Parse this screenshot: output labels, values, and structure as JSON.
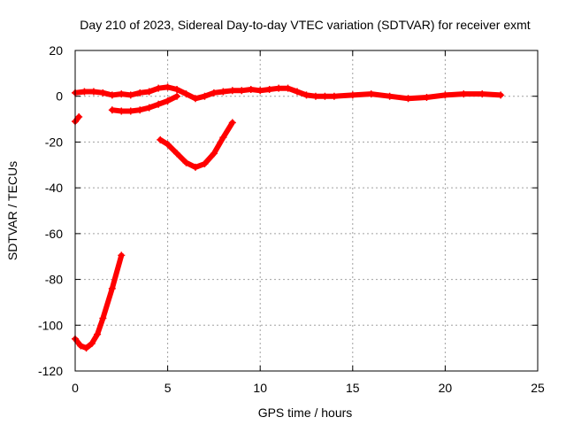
{
  "chart_data": {
    "type": "scatter",
    "title": "Day 210 of 2023, Sidereal Day-to-day VTEC variation (SDTVAR) for receiver exmt",
    "xlabel": "GPS time / hours",
    "ylabel": "SDTVAR / TECUs",
    "xlim": [
      0,
      25
    ],
    "ylim": [
      -120,
      20
    ],
    "grid": true,
    "xticks": [
      0,
      5,
      10,
      15,
      20,
      25
    ],
    "yticks": [
      20,
      0,
      -20,
      -40,
      -60,
      -80,
      -100,
      -120
    ],
    "series": [
      {
        "name": "main-trace",
        "color": "#ff0000",
        "x": [
          0,
          0.5,
          1,
          1.5,
          2,
          2.5,
          3,
          3.5,
          4,
          4.5,
          5,
          5.5,
          6,
          6.5,
          7,
          7.5,
          8,
          8.5,
          9,
          9.5,
          10,
          10.5,
          11,
          11.5,
          12,
          12.5,
          13,
          13.5,
          14,
          15,
          16,
          17,
          18,
          19,
          20,
          21,
          22,
          23
        ],
        "y": [
          1.5,
          2,
          2,
          1.5,
          0.5,
          1,
          0.5,
          1.5,
          2,
          3.5,
          4,
          3,
          1,
          -1,
          0,
          1.5,
          2,
          2.5,
          2.5,
          3,
          2.5,
          3,
          3.5,
          3.5,
          2,
          0.5,
          0,
          0,
          0,
          0.5,
          1,
          0,
          -1,
          -0.5,
          0.5,
          1,
          1,
          0.5
        ]
      },
      {
        "name": "lower-branch",
        "color": "#ff0000",
        "x": [
          2,
          2.5,
          3,
          3.5,
          4,
          4.5,
          5,
          5.5
        ],
        "y": [
          -6,
          -6.5,
          -6.5,
          -6,
          -5,
          -3.5,
          -2,
          0
        ]
      },
      {
        "name": "start-fragment",
        "color": "#ff0000",
        "x": [
          0,
          0.2
        ],
        "y": [
          -11,
          -9
        ]
      },
      {
        "name": "midday-dip",
        "color": "#ff0000",
        "x": [
          4.6,
          5,
          5.5,
          6,
          6.5,
          7,
          7.5,
          8,
          8.5
        ],
        "y": [
          -19,
          -21,
          -25,
          -29,
          -31,
          -29.5,
          -25,
          -18,
          -11.5
        ]
      },
      {
        "name": "early-dip",
        "color": "#ff0000",
        "x": [
          0,
          0.3,
          0.6,
          0.9,
          1.2,
          1.5,
          2,
          2.5
        ],
        "y": [
          -106,
          -109,
          -110,
          -108,
          -104,
          -97,
          -84,
          -69.5
        ]
      }
    ]
  }
}
